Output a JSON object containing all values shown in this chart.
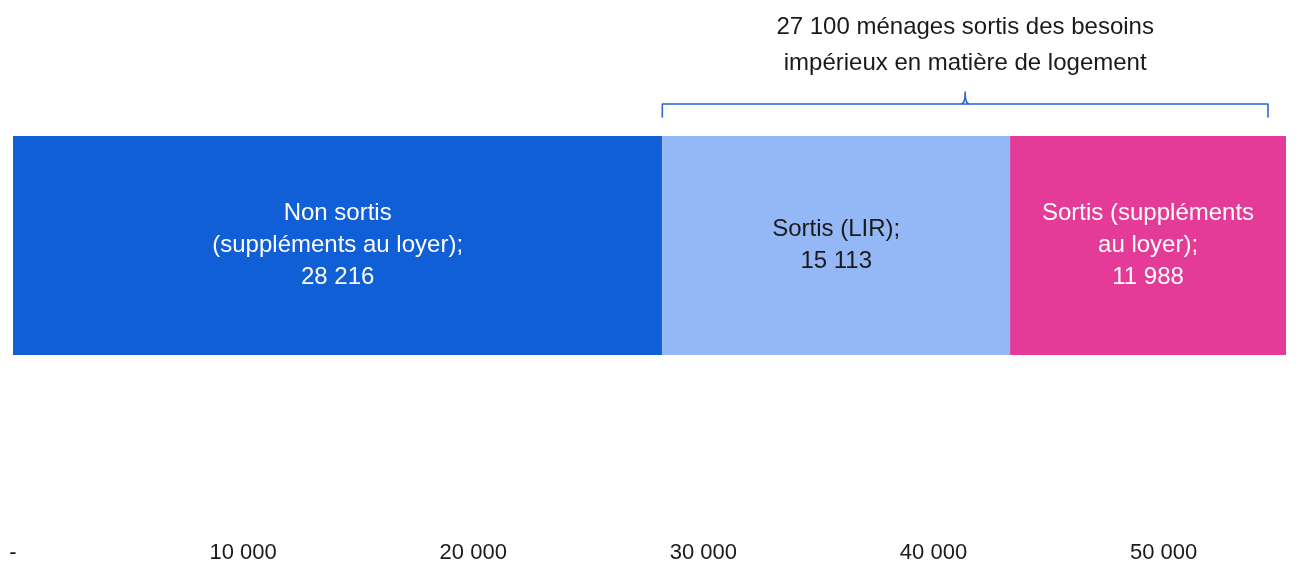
{
  "chart_data": {
    "type": "bar",
    "orientation": "horizontal",
    "stacked": true,
    "categories": [
      null
    ],
    "series": [
      {
        "name": "Non sortis (suppléments au loyer);",
        "color": "#105fd6",
        "values": [
          28216
        ],
        "value_labels": [
          "28 216"
        ]
      },
      {
        "name": "Sortis (LIR);",
        "color": "#94b8f6",
        "values": [
          15113
        ],
        "value_labels": [
          "15 113"
        ]
      },
      {
        "name": "Sortis (suppléments au loyer);",
        "color": "#e33b97",
        "values": [
          11988
        ],
        "value_labels": [
          "11 988"
        ]
      }
    ],
    "xlim": [
      0,
      55317
    ],
    "xticks": [
      {
        "value": 0,
        "label": "-"
      },
      {
        "value": 10000,
        "label": "10 000"
      },
      {
        "value": 20000,
        "label": "20 000"
      },
      {
        "value": 30000,
        "label": "30 000"
      },
      {
        "value": 40000,
        "label": "40 000"
      },
      {
        "value": 50000,
        "label": "50 000"
      }
    ],
    "annotations": [
      "27 100 ménages sortis des besoins impérieux en matière de logement"
    ]
  }
}
